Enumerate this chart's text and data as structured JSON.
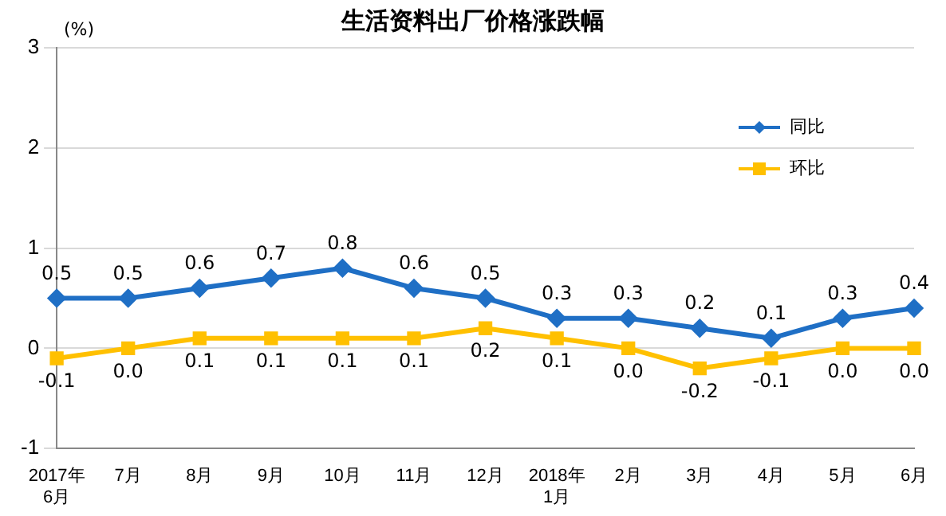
{
  "chart_data": {
    "type": "line",
    "title": "生活资料出厂价格涨跌幅",
    "ylabel": "(%)",
    "categories": [
      "2017年\n6月",
      "7月",
      "8月",
      "9月",
      "10月",
      "11月",
      "12月",
      "2018年\n1月",
      "2月",
      "3月",
      "4月",
      "5月",
      "6月"
    ],
    "series": [
      {
        "name": "同比",
        "color": "#1f6fc5",
        "marker": "diamond",
        "values": [
          0.5,
          0.5,
          0.6,
          0.7,
          0.8,
          0.6,
          0.5,
          0.3,
          0.3,
          0.2,
          0.1,
          0.3,
          0.4
        ],
        "value_labels": [
          "0.5",
          "0.5",
          "0.6",
          "0.7",
          "0.8",
          "0.6",
          "0.5",
          "0.3",
          "0.3",
          "0.2",
          "0.1",
          "0.3",
          "0.4"
        ]
      },
      {
        "name": "环比",
        "color": "#ffc000",
        "marker": "square",
        "values": [
          -0.1,
          0.0,
          0.1,
          0.1,
          0.1,
          0.1,
          0.2,
          0.1,
          0.0,
          -0.2,
          -0.1,
          0.0,
          0.0
        ],
        "value_labels": [
          "-0.1",
          "0.0",
          "0.1",
          "0.1",
          "0.1",
          "0.1",
          "0.2",
          "0.1",
          "0.0",
          "-0.2",
          "-0.1",
          "0.0",
          "0.0"
        ]
      }
    ],
    "ylim": [
      -1,
      3
    ],
    "yticks": [
      -1,
      0,
      1,
      2,
      3
    ],
    "grid": "y",
    "legend": "top right",
    "line_style": "solid"
  }
}
